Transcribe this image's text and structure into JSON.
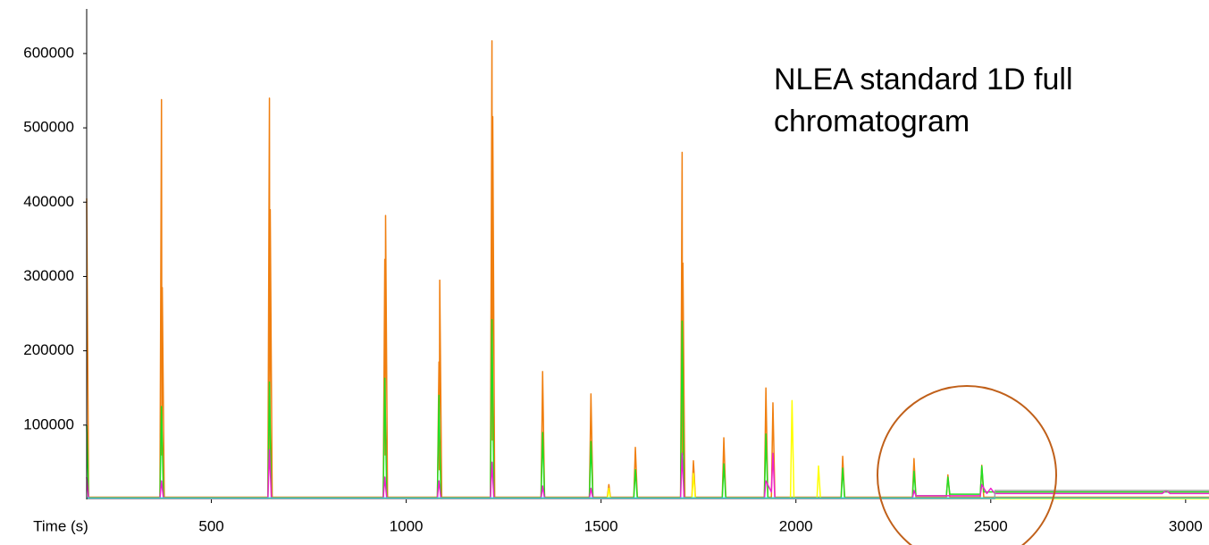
{
  "chart_data": {
    "type": "line",
    "annotation": "NLEA standard 1D full chromatogram",
    "x_label": "Time (s)",
    "xlim": [
      180,
      3060
    ],
    "xticks": [
      500,
      1000,
      1500,
      2000,
      2500,
      3000
    ],
    "ylim": [
      0,
      660000
    ],
    "yticks": [
      100000,
      200000,
      300000,
      400000,
      500000,
      600000
    ],
    "series": [
      {
        "color": "#f07f10",
        "x": [
          180,
          185,
          368,
          372,
          373,
          374,
          379,
          645,
          649,
          650,
          651,
          656,
          941,
          945,
          946,
          947,
          952,
          1080,
          1084,
          1085,
          1086,
          1091,
          1216,
          1220,
          1221,
          1222,
          1227,
          1346,
          1350,
          1355,
          1470,
          1474,
          1479,
          1516,
          1520,
          1524,
          1584,
          1588,
          1593,
          1704,
          1708,
          1709,
          1710,
          1715,
          1733,
          1737,
          1742,
          1811,
          1815,
          1820,
          1919,
          1923,
          1928,
          1937,
          1941,
          1946,
          2116,
          2120,
          2125,
          2299,
          2303,
          2308,
          2386,
          2390,
          2395,
          2473,
          2477,
          2482,
          3060
        ],
        "values": [
          405000,
          3000,
          3000,
          538000,
          60000,
          285000,
          3000,
          3000,
          540000,
          60000,
          390000,
          3000,
          3000,
          323000,
          60000,
          382000,
          3000,
          3000,
          185000,
          40000,
          295000,
          3000,
          3000,
          617000,
          80000,
          515000,
          3000,
          3000,
          172000,
          3000,
          3000,
          142000,
          3000,
          3000,
          20000,
          3000,
          3000,
          70000,
          3000,
          3000,
          467000,
          60000,
          318000,
          3000,
          3000,
          52000,
          3000,
          3000,
          83000,
          3000,
          3000,
          150000,
          3000,
          3000,
          130000,
          3000,
          3000,
          58000,
          3000,
          3000,
          55000,
          3000,
          3000,
          33000,
          3000,
          3000,
          46000,
          3000,
          3000
        ]
      },
      {
        "color": "#ffff00",
        "x": [
          180,
          1516,
          1520,
          1524,
          1733,
          1737,
          1742,
          1986,
          1990,
          1995,
          2054,
          2058,
          2063,
          3060
        ],
        "values": [
          1000,
          1000,
          15000,
          1000,
          1000,
          35000,
          1000,
          1000,
          133000,
          1000,
          1000,
          45000,
          1000,
          1000
        ]
      },
      {
        "color": "#22dd22",
        "x": [
          180,
          185,
          368,
          372,
          377,
          645,
          649,
          654,
          941,
          945,
          950,
          1080,
          1084,
          1089,
          1216,
          1220,
          1225,
          1346,
          1350,
          1355,
          1470,
          1474,
          1479,
          1584,
          1588,
          1593,
          1704,
          1708,
          1713,
          1811,
          1815,
          1820,
          1919,
          1923,
          1928,
          2116,
          2120,
          2125,
          2299,
          2303,
          2308,
          2386,
          2390,
          2395,
          2473,
          2477,
          2482,
          3060
        ],
        "values": [
          100000,
          2000,
          2000,
          125000,
          2000,
          2000,
          158000,
          2000,
          2000,
          163000,
          2000,
          2000,
          140000,
          2000,
          2000,
          242000,
          2000,
          2000,
          90000,
          2000,
          2000,
          78000,
          2000,
          2000,
          40000,
          2000,
          2000,
          240000,
          2000,
          2000,
          48000,
          2000,
          2000,
          88000,
          2000,
          2000,
          42000,
          2000,
          2000,
          38000,
          5000,
          5000,
          30000,
          7000,
          7000,
          45000,
          10000,
          10000
        ]
      },
      {
        "color": "#ee22cc",
        "x": [
          180,
          185,
          368,
          372,
          377,
          645,
          649,
          654,
          941,
          945,
          950,
          1080,
          1084,
          1089,
          1216,
          1220,
          1225,
          1346,
          1350,
          1355,
          1470,
          1474,
          1479,
          1704,
          1708,
          1713,
          1919,
          1923,
          1937,
          1941,
          1946,
          2299,
          2303,
          2308,
          2473,
          2477,
          2490,
          2500,
          2510,
          2940,
          2950,
          2960,
          3060
        ],
        "values": [
          30000,
          1000,
          1000,
          25000,
          1000,
          1000,
          67000,
          1000,
          1000,
          30000,
          1000,
          1000,
          25000,
          1000,
          1000,
          50000,
          1000,
          1000,
          18000,
          1000,
          1000,
          15000,
          1000,
          1000,
          62000,
          1000,
          1000,
          25000,
          10000,
          62000,
          1000,
          1000,
          12000,
          5000,
          5000,
          20000,
          8000,
          15000,
          8000,
          8000,
          12000,
          8000,
          8000
        ]
      },
      {
        "color": "#a0a0a0",
        "x": [
          180,
          2510,
          2511,
          3060
        ],
        "values": [
          1000,
          1000,
          12000,
          12000
        ]
      },
      {
        "color": "#33cccc",
        "x": [
          180,
          3060
        ],
        "values": [
          2000,
          2000
        ]
      }
    ]
  }
}
